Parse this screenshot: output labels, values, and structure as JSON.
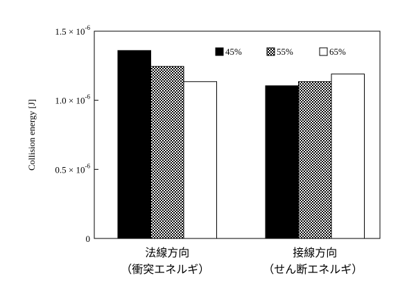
{
  "chart_data": {
    "type": "bar",
    "ylabel": "Collision energy [J]",
    "ylim": [
      0,
      1.5e-06
    ],
    "yticks": [
      {
        "value": 0,
        "base": "0",
        "exp": ""
      },
      {
        "value": 5e-07,
        "base": "0.5 × 10",
        "exp": "-6"
      },
      {
        "value": 1e-06,
        "base": "1.0 × 10",
        "exp": "-6"
      },
      {
        "value": 1.5e-06,
        "base": "1.5 × 10",
        "exp": "-6"
      }
    ],
    "categories": [
      {
        "line1": "法線方向",
        "line2": "（衝突エネルギ）"
      },
      {
        "line1": "接線方向",
        "line2": "（せん断エネルギ）"
      }
    ],
    "series": [
      {
        "name": "45%",
        "fill": "black",
        "values": [
          1.36e-06,
          1.105e-06
        ]
      },
      {
        "name": "55%",
        "fill": "checker",
        "values": [
          1.245e-06,
          1.135e-06
        ]
      },
      {
        "name": "65%",
        "fill": "white",
        "values": [
          1.135e-06,
          1.19e-06
        ]
      }
    ],
    "legend_position": "top-right",
    "grid": false
  }
}
